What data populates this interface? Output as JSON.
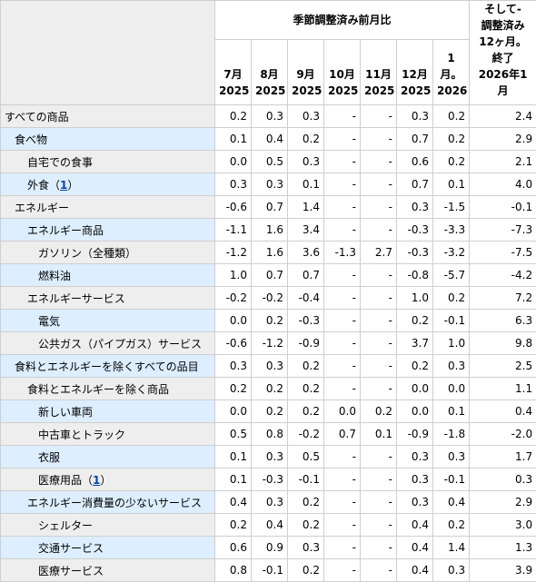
{
  "header": {
    "group_label": "季節調整済み前月比",
    "months": [
      {
        "line1": "7月",
        "line2": "2025"
      },
      {
        "line1": "8月",
        "line2": "2025"
      },
      {
        "line1": "9月",
        "line2": "2025"
      },
      {
        "line1": "10月",
        "line2": "2025"
      },
      {
        "line1": "11月",
        "line2": "2025"
      },
      {
        "line1": "12月",
        "line2": "2025"
      },
      {
        "line1": "1月。",
        "line2": "2026"
      }
    ],
    "last_lines": [
      "そして-",
      "調整済み",
      "12ヶ月。",
      "終了",
      "2026年1月"
    ]
  },
  "rows": [
    {
      "label": "すべての商品",
      "indent": 0,
      "style": "plain",
      "values": [
        "0.2",
        "0.3",
        "0.3",
        "-",
        "-",
        "0.3",
        "0.2",
        "2.4"
      ]
    },
    {
      "label": "食べ物",
      "indent": 1,
      "style": "alt",
      "values": [
        "0.1",
        "0.4",
        "0.2",
        "-",
        "-",
        "0.7",
        "0.2",
        "2.9"
      ]
    },
    {
      "label": "自宅での食事",
      "indent": 2,
      "style": "plain",
      "values": [
        "0.0",
        "0.5",
        "0.3",
        "-",
        "-",
        "0.6",
        "0.2",
        "2.1"
      ]
    },
    {
      "label": "外食（",
      "footnote": "1",
      "label_suffix": "）",
      "indent": 2,
      "style": "alt",
      "values": [
        "0.3",
        "0.3",
        "0.1",
        "-",
        "-",
        "0.7",
        "0.1",
        "4.0"
      ]
    },
    {
      "label": "エネルギー",
      "indent": 1,
      "style": "plain",
      "values": [
        "-0.6",
        "0.7",
        "1.4",
        "-",
        "-",
        "0.3",
        "-1.5",
        "-0.1"
      ]
    },
    {
      "label": "エネルギー商品",
      "indent": 2,
      "style": "alt",
      "values": [
        "-1.1",
        "1.6",
        "3.4",
        "-",
        "-",
        "-0.3",
        "-3.3",
        "-7.3"
      ]
    },
    {
      "label": "ガソリン（全種類）",
      "indent": 3,
      "style": "plain",
      "values": [
        "-1.2",
        "1.6",
        "3.6",
        "-1.3",
        "2.7",
        "-0.3",
        "-3.2",
        "-7.5"
      ]
    },
    {
      "label": "燃料油",
      "indent": 3,
      "style": "alt",
      "values": [
        "1.0",
        "0.7",
        "0.7",
        "-",
        "-",
        "-0.8",
        "-5.7",
        "-4.2"
      ]
    },
    {
      "label": "エネルギーサービス",
      "indent": 2,
      "style": "plain",
      "values": [
        "-0.2",
        "-0.2",
        "-0.4",
        "-",
        "-",
        "1.0",
        "0.2",
        "7.2"
      ]
    },
    {
      "label": "電気",
      "indent": 3,
      "style": "alt",
      "values": [
        "0.0",
        "0.2",
        "-0.3",
        "-",
        "-",
        "0.2",
        "-0.1",
        "6.3"
      ]
    },
    {
      "label": "公共ガス（パイプガス）サービス",
      "indent": 3,
      "style": "plain",
      "values": [
        "-0.6",
        "-1.2",
        "-0.9",
        "-",
        "-",
        "3.7",
        "1.0",
        "9.8"
      ]
    },
    {
      "label": "食料とエネルギーを除くすべての品目",
      "indent": 1,
      "style": "alt",
      "values": [
        "0.3",
        "0.3",
        "0.2",
        "-",
        "-",
        "0.2",
        "0.3",
        "2.5"
      ]
    },
    {
      "label": "食料とエネルギーを除く商品",
      "indent": 2,
      "style": "plain",
      "values": [
        "0.2",
        "0.2",
        "0.2",
        "-",
        "-",
        "0.0",
        "0.0",
        "1.1"
      ]
    },
    {
      "label": "新しい車両",
      "indent": 3,
      "style": "alt",
      "values": [
        "0.0",
        "0.2",
        "0.2",
        "0.0",
        "0.2",
        "0.0",
        "0.1",
        "0.4"
      ]
    },
    {
      "label": "中古車とトラック",
      "indent": 3,
      "style": "plain",
      "values": [
        "0.5",
        "0.8",
        "-0.2",
        "0.7",
        "0.1",
        "-0.9",
        "-1.8",
        "-2.0"
      ]
    },
    {
      "label": "衣服",
      "indent": 3,
      "style": "alt",
      "values": [
        "0.1",
        "0.3",
        "0.5",
        "-",
        "-",
        "0.3",
        "0.3",
        "1.7"
      ]
    },
    {
      "label": "医療用品（",
      "footnote": "1",
      "label_suffix": "）",
      "indent": 3,
      "style": "plain",
      "values": [
        "0.1",
        "-0.3",
        "-0.1",
        "-",
        "-",
        "0.3",
        "-0.1",
        "0.3"
      ]
    },
    {
      "label": "エネルギー消費量の少ないサービス",
      "indent": 2,
      "style": "alt",
      "values": [
        "0.4",
        "0.3",
        "0.2",
        "-",
        "-",
        "0.3",
        "0.4",
        "2.9"
      ]
    },
    {
      "label": "シェルター",
      "indent": 3,
      "style": "plain",
      "values": [
        "0.2",
        "0.4",
        "0.2",
        "-",
        "-",
        "0.4",
        "0.2",
        "3.0"
      ]
    },
    {
      "label": "交通サービス",
      "indent": 3,
      "style": "alt",
      "values": [
        "0.6",
        "0.9",
        "0.3",
        "-",
        "-",
        "0.4",
        "1.4",
        "1.3"
      ]
    },
    {
      "label": "医療サービス",
      "indent": 3,
      "style": "plain",
      "values": [
        "0.8",
        "-0.1",
        "0.2",
        "-",
        "-",
        "0.4",
        "0.3",
        "3.9"
      ]
    }
  ]
}
